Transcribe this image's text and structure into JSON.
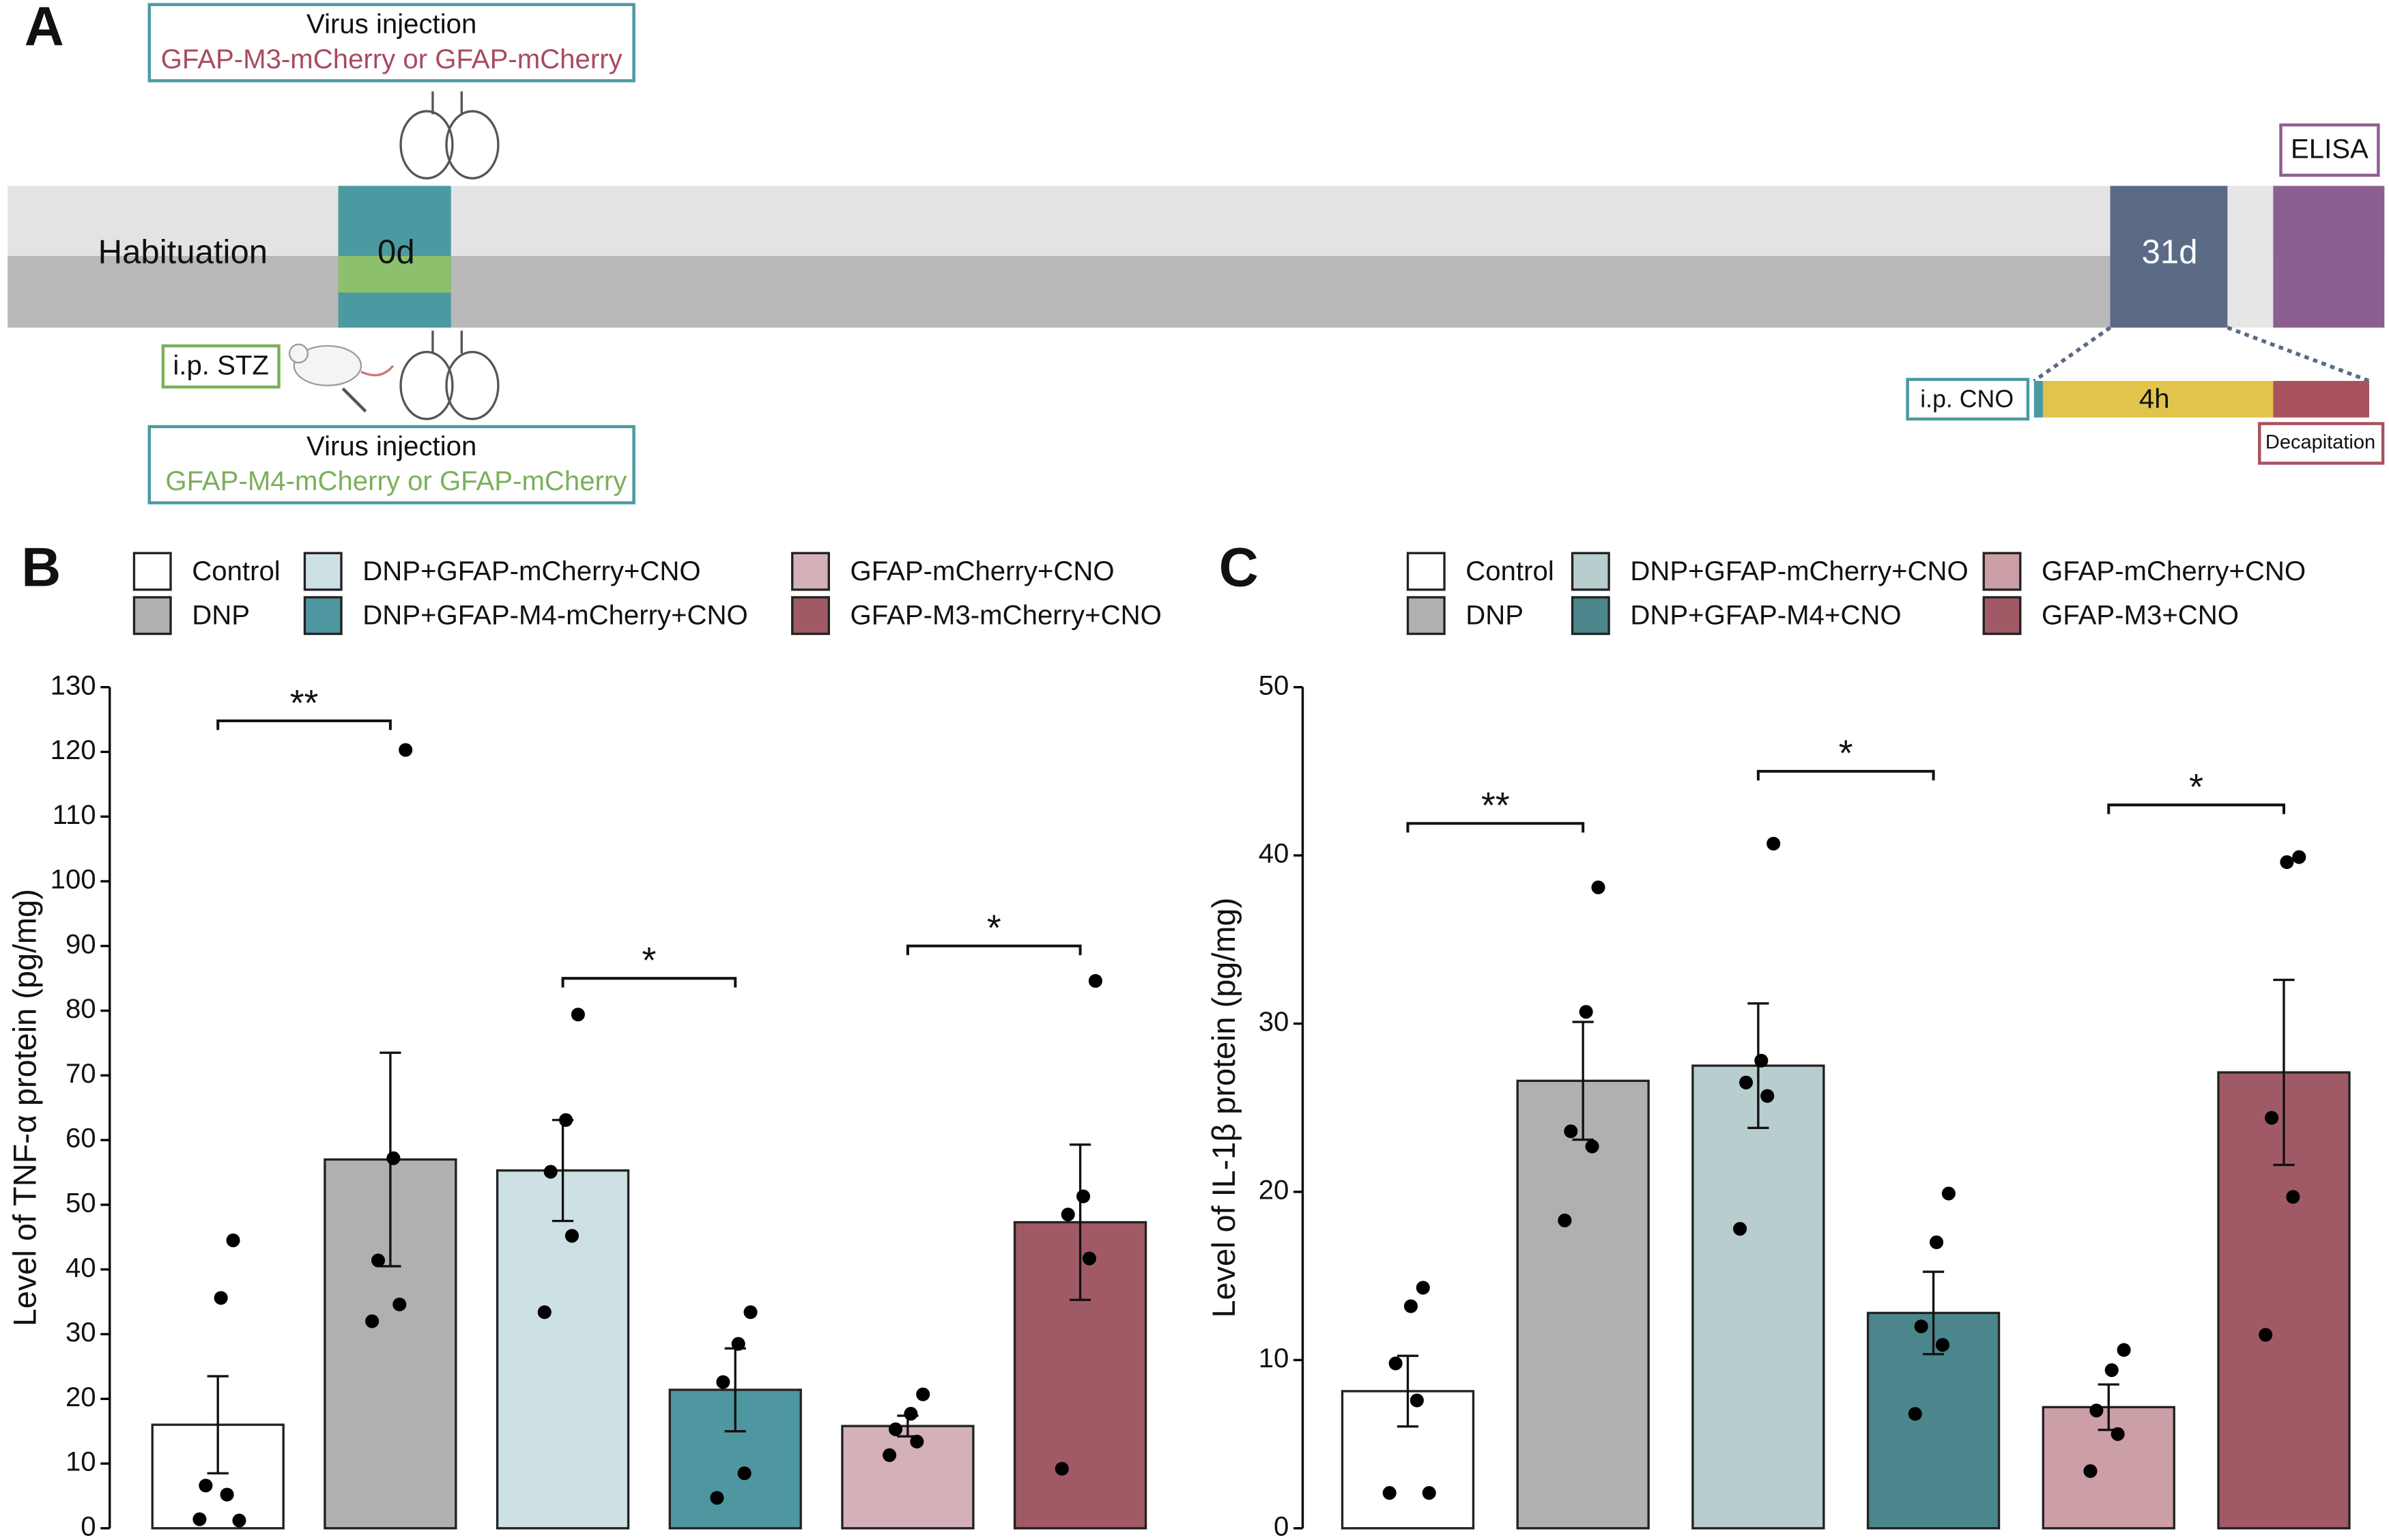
{
  "panel_labels": [
    "A",
    "B",
    "C"
  ],
  "timeline": {
    "top_box": {
      "title": "Virus injection",
      "subtitle": "GFAP-M3-mCherry or GFAP-mCherry"
    },
    "bottom_box": {
      "title": "Virus injection",
      "subtitle": "GFAP-M4-mCherry or GFAP-mCherry"
    },
    "habituation": "Habituation",
    "day0": "0d",
    "day31": "31d",
    "elisa": "ELISA",
    "stz": "i.p. STZ",
    "cno": "i.p. CNO",
    "duration": "4h",
    "decapitation": "Decapitation"
  },
  "chart_data": [
    {
      "type": "bar",
      "ylabel": "Level of TNF-α protein (pg/mg)",
      "ylim": [
        0,
        130
      ],
      "yticks": [
        0,
        10,
        20,
        30,
        40,
        50,
        60,
        70,
        80,
        90,
        100,
        110,
        120,
        130
      ],
      "series": [
        {
          "name": "Control",
          "color": "#ffffff",
          "values": [
            16
          ],
          "errors": [
            7.5
          ],
          "points": [
            44.5,
            35.6,
            6.6,
            5.2,
            1.4,
            1.2
          ]
        },
        {
          "name": "DNP",
          "color": "#b0b0b0",
          "values": [
            57
          ],
          "errors": [
            16.5
          ],
          "points": [
            120.3,
            57.2,
            41.4,
            34.6,
            32.0
          ]
        },
        {
          "name": "DNP+GFAP-mCherry+CNO",
          "color": "#cde0e4",
          "values": [
            55.3
          ],
          "errors": [
            7.8
          ],
          "points": [
            79.4,
            63.1,
            55.1,
            45.2,
            33.4
          ]
        },
        {
          "name": "DNP+GFAP-M4-mCherry+CNO",
          "color": "#4f97a0",
          "values": [
            21.4
          ],
          "errors": [
            6.4
          ],
          "points": [
            33.4,
            28.5,
            22.6,
            8.5,
            4.7
          ]
        },
        {
          "name": "GFAP-mCherry+CNO",
          "color": "#d4b0b8",
          "values": [
            15.8
          ],
          "errors": [
            1.6
          ],
          "points": [
            20.7,
            17.7,
            15.3,
            13.4,
            11.3
          ]
        },
        {
          "name": "GFAP-M3-mCherry+CNO",
          "color": "#a05a66",
          "values": [
            47.3
          ],
          "errors": [
            12
          ],
          "points": [
            84.6,
            51.3,
            48.5,
            41.7,
            9.2
          ]
        }
      ],
      "annotations": [
        {
          "label": "**",
          "from": 0,
          "to": 1,
          "y": 124.8
        },
        {
          "label": "*",
          "from": 2,
          "to": 3,
          "y": 85
        },
        {
          "label": "*",
          "from": 4,
          "to": 5,
          "y": 90
        }
      ]
    },
    {
      "type": "bar",
      "ylabel": "Level of IL-1β protein (pg/mg)",
      "ylim": [
        0,
        50
      ],
      "yticks": [
        0,
        10,
        20,
        30,
        40,
        50
      ],
      "series": [
        {
          "name": "Control",
          "color": "#ffffff",
          "values": [
            8.15
          ],
          "errors": [
            2.1
          ],
          "points": [
            14.3,
            13.2,
            9.8,
            7.6,
            2.1,
            2.1
          ]
        },
        {
          "name": "DNP",
          "color": "#b0b0b0",
          "values": [
            26.6
          ],
          "errors": [
            3.5
          ],
          "points": [
            38.1,
            30.7,
            23.6,
            22.7,
            18.3
          ]
        },
        {
          "name": "DNP+GFAP-mCherry+CNO",
          "color": "#b8cdcd",
          "values": [
            27.5
          ],
          "errors": [
            3.7
          ],
          "points": [
            40.7,
            27.8,
            26.5,
            25.7,
            17.8
          ]
        },
        {
          "name": "DNP+GFAP-M4+CNO",
          "color": "#4a868c",
          "values": [
            12.8
          ],
          "errors": [
            2.45
          ],
          "points": [
            19.9,
            17.0,
            12.0,
            10.9,
            6.8
          ]
        },
        {
          "name": "GFAP-mCherry+CNO",
          "color": "#cc9ea6",
          "values": [
            7.2
          ],
          "errors": [
            1.35
          ],
          "points": [
            10.6,
            9.4,
            7.0,
            5.6,
            3.4
          ]
        },
        {
          "name": "GFAP-M3+CNO",
          "color": "#a05a66",
          "values": [
            27.1
          ],
          "errors": [
            5.5
          ],
          "points": [
            39.9,
            39.6,
            24.4,
            19.7,
            11.5
          ]
        }
      ],
      "annotations": [
        {
          "label": "**",
          "from": 0,
          "to": 1,
          "y": 41.9
        },
        {
          "label": "*",
          "from": 2,
          "to": 3,
          "y": 45
        },
        {
          "label": "*",
          "from": 4,
          "to": 5,
          "y": 43
        }
      ]
    }
  ]
}
